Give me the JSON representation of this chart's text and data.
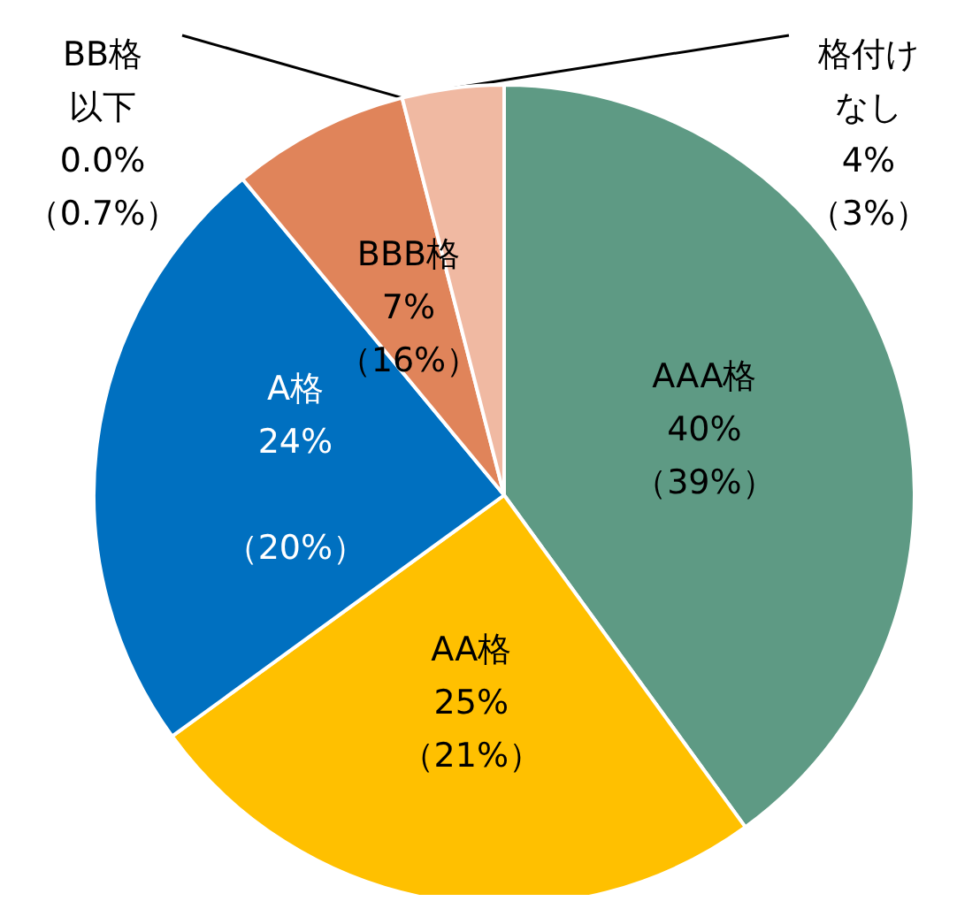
{
  "chart_data": {
    "type": "pie",
    "categories": [
      "AAA格",
      "AA格",
      "A格",
      "BBB格",
      "BB格以下",
      "格付けなし"
    ],
    "values": [
      40,
      25,
      24,
      7,
      0.0,
      4
    ],
    "colors": [
      "#5e9a84",
      "#ffc000",
      "#0070c0",
      "#e0845a",
      "#c55a11",
      "#f0b9a2"
    ],
    "value_labels": [
      "40%\n（39%）",
      "25%\n（21%）",
      "24%\n\n（20%）",
      "7%\n（16%）",
      "0.0%\n（0.7%）",
      "4%\n（3%）"
    ]
  }
}
